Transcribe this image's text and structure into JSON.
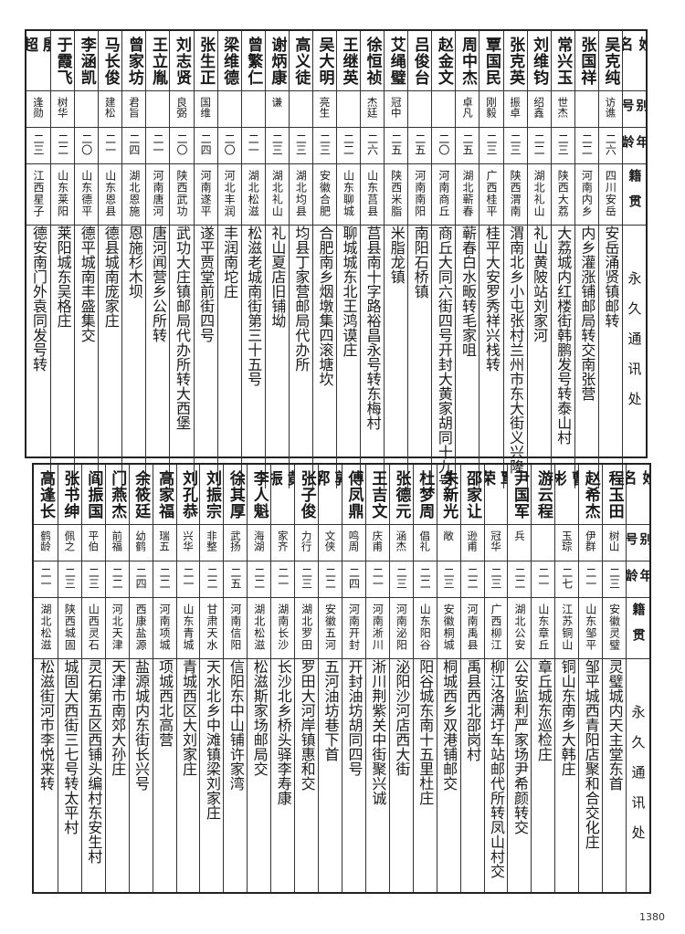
{
  "headers": {
    "name": "姓名",
    "alias": "别号",
    "age": "年龄",
    "origin": "籍贯",
    "address": "永久通讯处"
  },
  "top": {
    "rows": [
      {
        "name": "吴克纯",
        "alias": "访谯",
        "age": "二六",
        "origin": "四川安岳",
        "address": "安岳涌贤镇邮转"
      },
      {
        "name": "张国祥",
        "alias": "",
        "age": "二二",
        "origin": "河南内乡",
        "address": "内乡灌涨铺邮局转交南张营"
      },
      {
        "name": "常兴玉",
        "alias": "世杰",
        "age": "二三",
        "origin": "陕西大荔",
        "address": "大荔城内红楼街韩鹏发号转泰山村"
      },
      {
        "name": "刘维钧",
        "alias": "绍鑫",
        "age": "二二",
        "origin": "湖北礼山",
        "address": "礼山黄陂站刘家河"
      },
      {
        "name": "张克英",
        "alias": "振卓",
        "age": "二三",
        "origin": "陕西渭南",
        "address": "渭南北乡小屯张村兰州市东大街义兴隆"
      },
      {
        "name": "覃国民",
        "alias": "刚毅",
        "age": "二三",
        "origin": "广西桂平",
        "address": "桂平大安罗秀祥兴栈转"
      },
      {
        "name": "周中杰",
        "alias": "卓凡",
        "age": "二五",
        "origin": "湖北蕲春",
        "address": "蕲春白水畈转毛家咀"
      },
      {
        "name": "赵金文",
        "alias": "",
        "age": "二〇",
        "origin": "河南商丘",
        "address": "商丘大同六街四号开封大黄家胡同十九号"
      },
      {
        "name": "吕俊台",
        "alias": "",
        "age": "二五",
        "origin": "河南南阳",
        "address": "南阳石桥镇"
      },
      {
        "name": "艾绳璧",
        "alias": "冠中",
        "age": "二五",
        "origin": "陕西米脂",
        "address": "米脂龙镇"
      },
      {
        "name": "徐恒祯",
        "alias": "杰廷",
        "age": "二六",
        "origin": "山东莒县",
        "address": "莒县南十字路裕昌永号转东梅村"
      },
      {
        "name": "王继英",
        "alias": "",
        "age": "二二",
        "origin": "山东聊城",
        "address": "聊城城东北王鸿谟庄"
      },
      {
        "name": "吴大明",
        "alias": "亮生",
        "age": "二三",
        "origin": "安徽合肥",
        "address": "合肥南乡烟墩集四滚塘坎"
      },
      {
        "name": "高义徒",
        "alias": "",
        "age": "二三",
        "origin": "湖北均县",
        "address": "均县丁家营邮局代办所"
      },
      {
        "name": "谢炳康",
        "alias": "谦",
        "age": "二三",
        "origin": "湖北礼山",
        "address": "礼山夏店旧铺坳"
      },
      {
        "name": "曾繁仁",
        "alias": "",
        "age": "二一",
        "origin": "湖北松滋",
        "address": "松滋老城南街第三十五号"
      },
      {
        "name": "梁维德",
        "alias": "",
        "age": "二〇",
        "origin": "河北丰润",
        "address": "丰润南坨庄"
      },
      {
        "name": "张生正",
        "alias": "国维",
        "age": "二四",
        "origin": "河南遂平",
        "address": "遂平贾堂前街四号"
      },
      {
        "name": "刘志贤",
        "alias": "良弼",
        "age": "二〇",
        "origin": "陕西武功",
        "address": "武功大庄镇邮局代办所转大西堡"
      },
      {
        "name": "王立胤",
        "alias": "",
        "age": "二一",
        "origin": "河南唐河",
        "address": "唐河闻营乡公所转"
      },
      {
        "name": "曾家坊",
        "alias": "君旨",
        "age": "二四",
        "origin": "湖北恩施",
        "address": "恩施杉木坝"
      },
      {
        "name": "马长俊",
        "alias": "建松",
        "age": "二一",
        "origin": "山东恩县",
        "address": "德县城南庞家庄"
      },
      {
        "name": "李涵凯",
        "alias": "",
        "age": "二〇",
        "origin": "山东德平",
        "address": "德平城南丰盛集交"
      },
      {
        "name": "于霞飞",
        "alias": "树华",
        "age": "二二",
        "origin": "山东莱阳",
        "address": "莱阳城东吴格庄"
      },
      {
        "name": "殷超",
        "alias": "逢勋",
        "age": "二三",
        "origin": "江西星子",
        "address": "德安南门外袁同发号转"
      }
    ]
  },
  "bottom": {
    "rows": [
      {
        "name": "程玉田",
        "alias": "树山",
        "age": "二三",
        "origin": "安徽灵璧",
        "address": "灵璧城内天主堂东首"
      },
      {
        "name": "赵希杰",
        "alias": "伊群",
        "age": "二一",
        "origin": "山东邹平",
        "address": "邹平城西青阳店聚和合交化庄"
      },
      {
        "name": "曹彬",
        "alias": "玉琮",
        "age": "二七",
        "origin": "江苏铜山",
        "address": "铜山东南乡大韩庄"
      },
      {
        "name": "游云程",
        "alias": "",
        "age": "二一",
        "origin": "山东章丘",
        "address": "章丘城东巡检庄"
      },
      {
        "name": "尹国军",
        "alias": "兵",
        "age": "二二",
        "origin": "湖北公安",
        "address": "公安监利严家场尹希颜转交"
      },
      {
        "name": "覃荣",
        "alias": "冠华",
        "age": "二三",
        "origin": "广西柳江",
        "address": "柳江洛满圩车站邮代所转凤山村交"
      },
      {
        "name": "邵家让",
        "alias": "逊甫",
        "age": "二二",
        "origin": "河南禹县",
        "address": "禹县西北邵岗村"
      },
      {
        "name": "朱新光",
        "alias": "敞",
        "age": "二三",
        "origin": "安徽桐城",
        "address": "桐城西乡双港铺邮交"
      },
      {
        "name": "杜梦周",
        "alias": "倡礼",
        "age": "二二",
        "origin": "山东阳谷",
        "address": "阳谷城东南十五里杜庄"
      },
      {
        "name": "张德元",
        "alias": "涵杰",
        "age": "二三",
        "origin": "河南泌阳",
        "address": "泌阳沙河店西大街"
      },
      {
        "name": "王吉文",
        "alias": "庆甫",
        "age": "二一",
        "origin": "河南淅川",
        "address": "淅川荆紫关中街聚兴诚"
      },
      {
        "name": "傅凤鼎",
        "alias": "鸣周",
        "age": "二四",
        "origin": "河南开封",
        "address": "开封油坊胡同四号"
      },
      {
        "name": "郭郛",
        "alias": "文侠",
        "age": "二二",
        "origin": "安徽五河",
        "address": "五河油坊巷下首"
      },
      {
        "name": "张子俊",
        "alias": "力行",
        "age": "二三",
        "origin": "湖北罗田",
        "address": "罗田大河岸镇惠和交"
      },
      {
        "name": "黄振",
        "alias": "家齐",
        "age": "二一",
        "origin": "湖南长沙",
        "address": "长沙北乡桥头驿李寿康"
      },
      {
        "name": "李人魁",
        "alias": "海湖",
        "age": "二二",
        "origin": "湖北松滋",
        "address": "松滋斯家场邮局交"
      },
      {
        "name": "徐其厚",
        "alias": "武扬",
        "age": "二五",
        "origin": "河南信阳",
        "address": "信阳东中山铺许家湾"
      },
      {
        "name": "刘振宗",
        "alias": "非整",
        "age": "二二",
        "origin": "甘肃天水",
        "address": "天水北乡中滩镇梁刘家庄"
      },
      {
        "name": "刘孔恭",
        "alias": "兴华",
        "age": "二一",
        "origin": "山东青城",
        "address": "青城西区大刘家庄"
      },
      {
        "name": "高家福",
        "alias": "瑞五",
        "age": "二二",
        "origin": "河南项城",
        "address": "项城西北高营"
      },
      {
        "name": "余筱廷",
        "alias": "幼鹤",
        "age": "二四",
        "origin": "西康盐源",
        "address": "盐源城内东街长兴号"
      },
      {
        "name": "门燕杰",
        "alias": "前福",
        "age": "二二",
        "origin": "河北天津",
        "address": "天津市南郊大孙庄"
      },
      {
        "name": "阎振国",
        "alias": "平伯",
        "age": "二三",
        "origin": "山西灵石",
        "address": "灵石第五区西铺头编村东安生村"
      },
      {
        "name": "张书绅",
        "alias": "佩之",
        "age": "二三",
        "origin": "陕西城固",
        "address": "城固大西街三七号转太平村"
      },
      {
        "name": "高逢长",
        "alias": "鹤龄",
        "age": "二一",
        "origin": "湖北松滋",
        "address": "松滋街河市李悦来转"
      }
    ]
  },
  "page_number": "1380"
}
